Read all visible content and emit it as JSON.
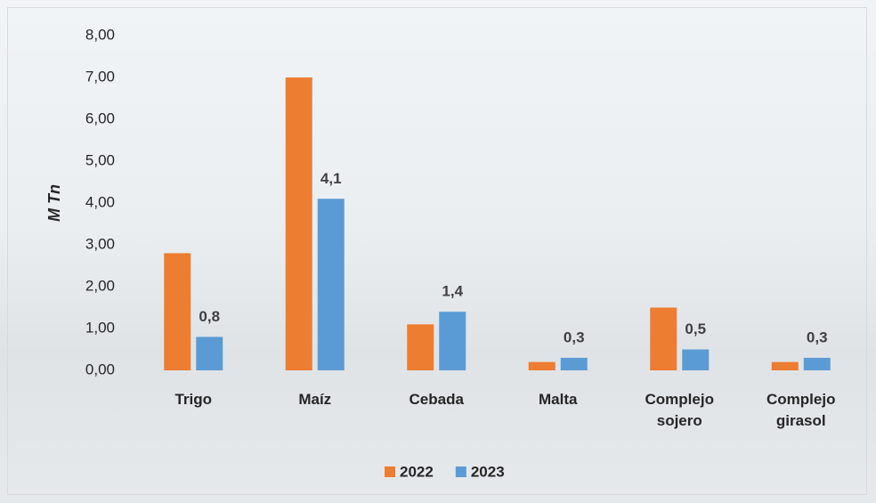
{
  "chart_data": {
    "type": "bar",
    "y_label": "M Tn",
    "categories": [
      "Trigo",
      "Maíz",
      "Cebada",
      "Malta",
      "Complejo sojero",
      "Complejo girasol"
    ],
    "series": [
      {
        "name": "2022",
        "color": "#ed7d31",
        "values": [
          2.8,
          7.0,
          1.1,
          0.2,
          1.5,
          0.2
        ]
      },
      {
        "name": "2023",
        "color": "#5b9bd5",
        "values": [
          0.8,
          4.1,
          1.4,
          0.3,
          0.5,
          0.3
        ],
        "value_labels": [
          "0,8",
          "4,1",
          "1,4",
          "0,3",
          "0,5",
          "0,3"
        ]
      }
    ],
    "ylim": [
      0,
      8
    ],
    "yticks": [
      {
        "value": 0,
        "label": "0,00"
      },
      {
        "value": 1,
        "label": "1,00"
      },
      {
        "value": 2,
        "label": "2,00"
      },
      {
        "value": 3,
        "label": "3,00"
      },
      {
        "value": 4,
        "label": "4,00"
      },
      {
        "value": 5,
        "label": "5,00"
      },
      {
        "value": 6,
        "label": "6,00"
      },
      {
        "value": 7,
        "label": "7,00"
      },
      {
        "value": 8,
        "label": "8,00"
      }
    ],
    "grid": false
  }
}
